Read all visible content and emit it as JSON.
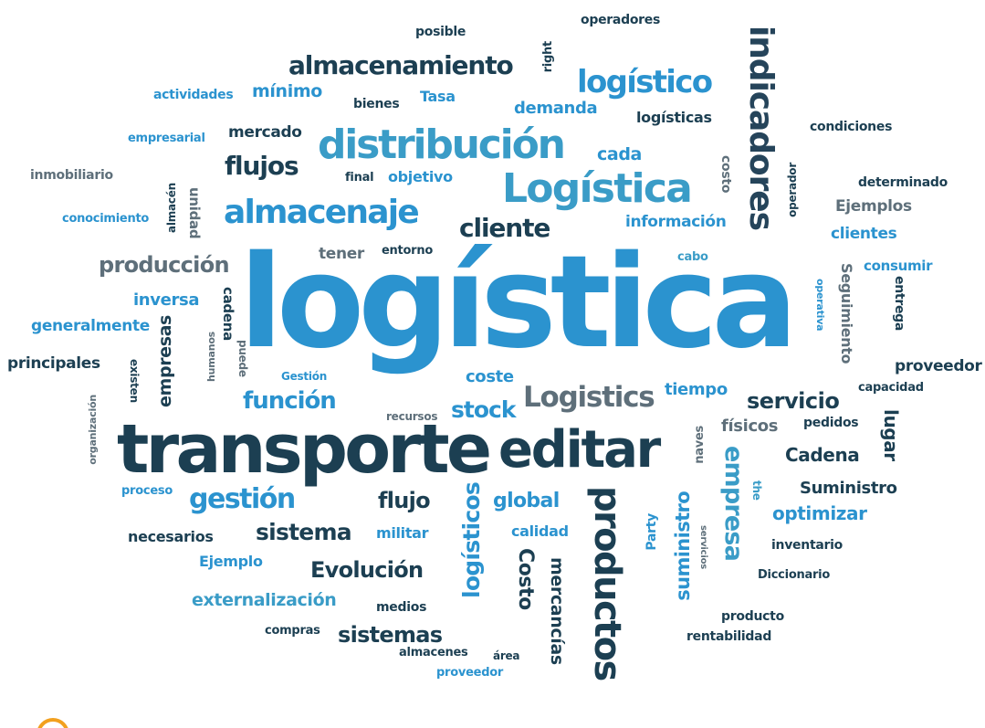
{
  "words": {
    "logistica_main": "logística",
    "transporte": "transporte",
    "editar": "editar",
    "logistica_cap": "Logística",
    "distribucion": "distribución",
    "almacenaje": "almacenaje",
    "logistico": "logístico",
    "indicadores": "indicadores",
    "productos": "productos",
    "logistics": "Logistics",
    "almacenamiento": "almacenamiento",
    "gestion": "gestión",
    "servicio": "servicio",
    "cliente": "cliente",
    "funcion": "función",
    "stock": "stock",
    "flujos": "flujos",
    "produccion": "producción",
    "sistema": "sistema",
    "sistemas": "sistemas",
    "empresa": "empresa",
    "logisticos": "logísticos",
    "suministro": "suministro",
    "Suministro": "Suministro",
    "Cadena": "Cadena",
    "evolucion": "Evolución",
    "optimizar": "optimizar",
    "global": "global",
    "flujo": "flujo",
    "externalizacion": "externalización",
    "Costo": "Costo",
    "mercancias": "mercancías",
    "empresas": "empresas",
    "lugar": "lugar",
    "seguimiento": "Seguimiento",
    "minimo": "mínimo",
    "actividades": "actividades",
    "bienes": "bienes",
    "tasa": "Tasa",
    "demanda": "demanda",
    "logisticas": "logísticas",
    "posible": "posible",
    "operadores": "operadores",
    "right": "right",
    "condiciones": "condiciones",
    "empresarial": "empresarial",
    "mercado": "mercado",
    "cada": "cada",
    "final": "final",
    "objetivo": "objetivo",
    "costo": "costo",
    "operador": "operador",
    "determinado": "determinado",
    "ejemplos": "Ejemplos",
    "clientes": "clientes",
    "inmobiliario": "inmobiliario",
    "almacen": "almacén",
    "unidad": "unidad",
    "conocimiento": "conocimiento",
    "informacion": "información",
    "tener": "tener",
    "entorno": "entorno",
    "cabo": "cabo",
    "consumir": "consumir",
    "entrega": "entrega",
    "operativa": "operativa",
    "inversa": "inversa",
    "cadena_small": "cadena",
    "puede": "puede",
    "generalmente": "generalmente",
    "humanos": "humanos",
    "principales": "principales",
    "existen": "existen",
    "gestion_small": "Gestión",
    "coste": "coste",
    "tiempo": "tiempo",
    "proveedor": "proveedor",
    "capacidad": "capacidad",
    "organizacion": "organización",
    "recursos": "recursos",
    "fisicos": "físicos",
    "pedidos": "pedidos",
    "naves": "naves",
    "proceso": "proceso",
    "the": "the",
    "necesarios": "necesarios",
    "militar": "militar",
    "calidad": "calidad",
    "party": "Party",
    "servicios": "servicios",
    "inventario": "inventario",
    "ejemplo": "Ejemplo",
    "diccionario": "Diccionario",
    "medios": "medios",
    "producto": "producto",
    "compras": "compras",
    "rentabilidad": "rentabilidad",
    "almacenes": "almacenes",
    "area": "área",
    "proveedor2": "proveedor"
  }
}
